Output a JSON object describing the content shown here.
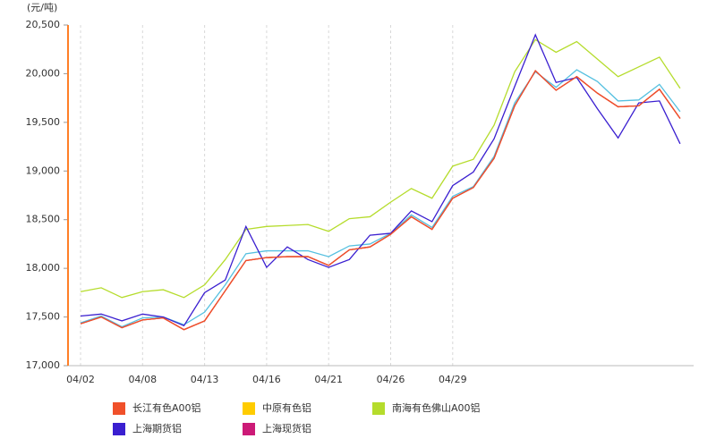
{
  "chart_data": {
    "type": "line",
    "y_label": "(元/吨)",
    "categories": [
      "04/02",
      null,
      null,
      "04/08",
      null,
      null,
      "04/13",
      null,
      null,
      "04/16",
      null,
      null,
      "04/21",
      null,
      null,
      "04/26",
      null,
      null,
      "04/29",
      null,
      null,
      null,
      null,
      null,
      null,
      null,
      null,
      null,
      null,
      null
    ],
    "ylim": [
      17000,
      20500
    ],
    "yticks": [
      {
        "value": 17000,
        "label": "17,000"
      },
      {
        "value": 17500,
        "label": "17,500"
      },
      {
        "value": 18000,
        "label": "18,000"
      },
      {
        "value": 18500,
        "label": "18,500"
      },
      {
        "value": 19000,
        "label": "19,000"
      },
      {
        "value": 19500,
        "label": "19,500"
      },
      {
        "value": 20000,
        "label": "20,000"
      },
      {
        "value": 20500,
        "label": "20,500"
      }
    ],
    "axis_color": "#ff7f27",
    "series": [
      {
        "name": "中原有色铝",
        "color": "#ffcc00",
        "values": [
          17430,
          17500,
          17390,
          17470,
          17490,
          17370,
          17460,
          17770,
          18080,
          18110,
          18120,
          18120,
          18030,
          18190,
          18220,
          18350,
          18530,
          18400,
          18720,
          18830,
          19130,
          19670,
          20030,
          19830,
          19970,
          19800,
          19660,
          19670,
          19840,
          19540
        ]
      },
      {
        "name": "南海有色佛山A00铝",
        "color": "#b5dc2c",
        "values": [
          17760,
          17800,
          17700,
          17760,
          17780,
          17700,
          17830,
          18090,
          18400,
          18430,
          18440,
          18450,
          18380,
          18510,
          18530,
          18680,
          18820,
          18720,
          19050,
          19120,
          19470,
          20020,
          20350,
          20220,
          20330,
          20150,
          19970,
          20070,
          20170,
          19850
        ]
      },
      {
        "color": "#55c0e0",
        "values": [
          17440,
          17510,
          17400,
          17490,
          17500,
          17420,
          17550,
          17830,
          18150,
          18180,
          18180,
          18180,
          18120,
          18230,
          18250,
          18360,
          18550,
          18420,
          18740,
          18840,
          19150,
          19700,
          20020,
          19860,
          20040,
          19920,
          19720,
          19730,
          19890,
          19610
        ]
      },
      {
        "name": "上海现货铝",
        "color": "#cc1a77",
        "values": [
          17430,
          17500,
          17390,
          17470,
          17490,
          17370,
          17460,
          17770,
          18080,
          18110,
          18120,
          18120,
          18030,
          18190,
          18220,
          18350,
          18530,
          18400,
          18720,
          18830,
          19130,
          19670,
          20030,
          19830,
          19970,
          19800,
          19660,
          19670,
          19840,
          19540
        ]
      },
      {
        "name": "上海期货铝",
        "color": "#3a1fd0",
        "values": [
          17510,
          17530,
          17460,
          17530,
          17500,
          17410,
          17750,
          17880,
          18430,
          18010,
          18220,
          18090,
          18010,
          18090,
          18340,
          18360,
          18590,
          18480,
          18850,
          18990,
          19330,
          19870,
          20400,
          19910,
          19960,
          19640,
          19340,
          19700,
          19720,
          19280
        ]
      },
      {
        "name": "长江有色A00铝",
        "color": "#f0502a",
        "values": [
          17430,
          17500,
          17390,
          17470,
          17490,
          17370,
          17460,
          17770,
          18080,
          18110,
          18120,
          18120,
          18030,
          18190,
          18220,
          18350,
          18530,
          18400,
          18720,
          18830,
          19130,
          19670,
          20030,
          19830,
          19970,
          19800,
          19660,
          19670,
          19840,
          19540
        ]
      }
    ],
    "legend_order": [
      5,
      0,
      1,
      4,
      3
    ]
  }
}
